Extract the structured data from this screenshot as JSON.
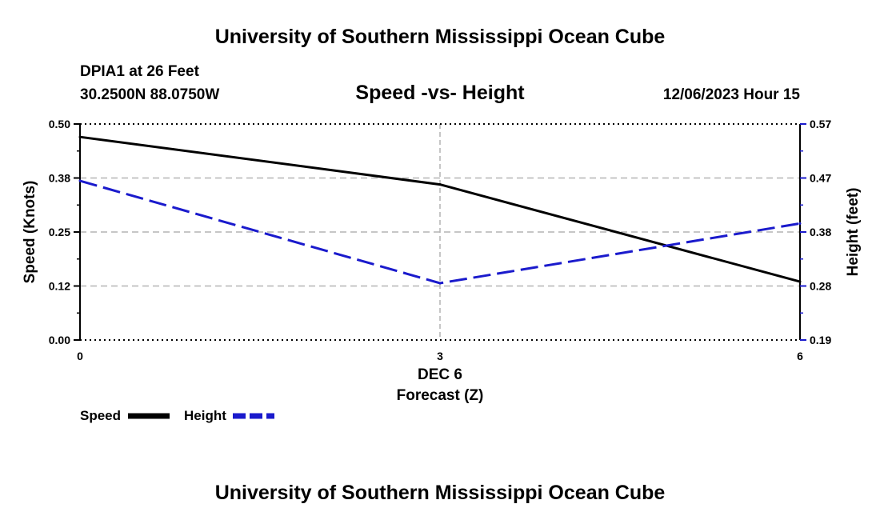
{
  "header": {
    "title": "University of Southern Mississippi Ocean Cube",
    "station": "DPIA1 at 26 Feet",
    "coords": "30.2500N  88.0750W",
    "datetime": "12/06/2023 Hour 15"
  },
  "footer": {
    "title": "University of Southern Mississippi Ocean Cube"
  },
  "colors": {
    "speed": "#000000",
    "height": "#1a1acc",
    "grid": "#b4b4b4"
  },
  "chart_data": {
    "type": "line",
    "title": "Speed -vs- Height",
    "xlabel": "Forecast (Z)",
    "xsublabel": "DEC 6",
    "ylabel": "Speed (Knots)",
    "y2label": "Height (feet)",
    "x": [
      0,
      3,
      6
    ],
    "xticks": [
      "0",
      "3",
      "6"
    ],
    "ylim": [
      0,
      0.5
    ],
    "yticks": [
      "0.00",
      "0.12",
      "0.25",
      "0.38",
      "0.50"
    ],
    "y2lim": [
      0.19,
      0.57
    ],
    "y2ticks": [
      "0.19",
      "0.28",
      "0.38",
      "0.47",
      "0.57"
    ],
    "grid": true,
    "series": [
      {
        "name": "Speed",
        "axis": "left",
        "style": "solid",
        "values": [
          0.47,
          0.36,
          0.135
        ]
      },
      {
        "name": "Height",
        "axis": "right",
        "style": "dashed",
        "values": [
          0.47,
          0.29,
          0.395
        ]
      }
    ],
    "legend": {
      "position": "bottom-left",
      "entries": [
        "Speed",
        "Height"
      ]
    }
  }
}
